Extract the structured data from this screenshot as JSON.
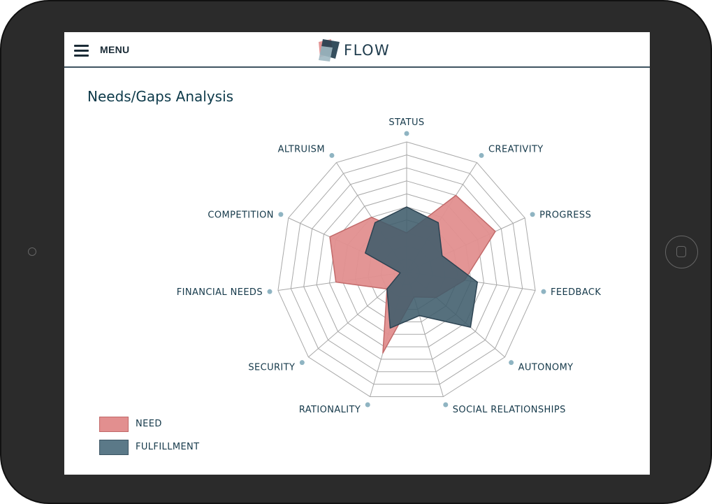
{
  "header": {
    "menu_label": "MENU",
    "logo_text": "FLOW"
  },
  "page": {
    "title": "Needs/Gaps Analysis"
  },
  "legend": {
    "need_label": "NEED",
    "fulfillment_label": "FULFILLMENT"
  },
  "colors": {
    "need": "#e28f8f",
    "fulfillment": "#3f5c6b",
    "grid": "#a8a8a8",
    "label": "#15394a",
    "marker": "#8fb4c2"
  },
  "chart_data": {
    "type": "radar",
    "categories": [
      "STATUS",
      "CREATIVITY",
      "PROGRESS",
      "FEEDBACK",
      "AUTONOMY",
      "SOCIAL RELATIONSHIPS",
      "RATIONALITY",
      "SECURITY",
      "FINANCIAL NEEDS",
      "COMPETITION",
      "ALTRUISM"
    ],
    "rings": 10,
    "series": [
      {
        "name": "NEED",
        "values": [
          3,
          7,
          7.5,
          4.5,
          3,
          2,
          6.5,
          2,
          5.5,
          6.5,
          5
        ]
      },
      {
        "name": "FULFILLMENT",
        "values": [
          5,
          4.5,
          3,
          5.5,
          6.5,
          3.5,
          4.5,
          2,
          0.5,
          3.5,
          4.5
        ]
      }
    ]
  }
}
